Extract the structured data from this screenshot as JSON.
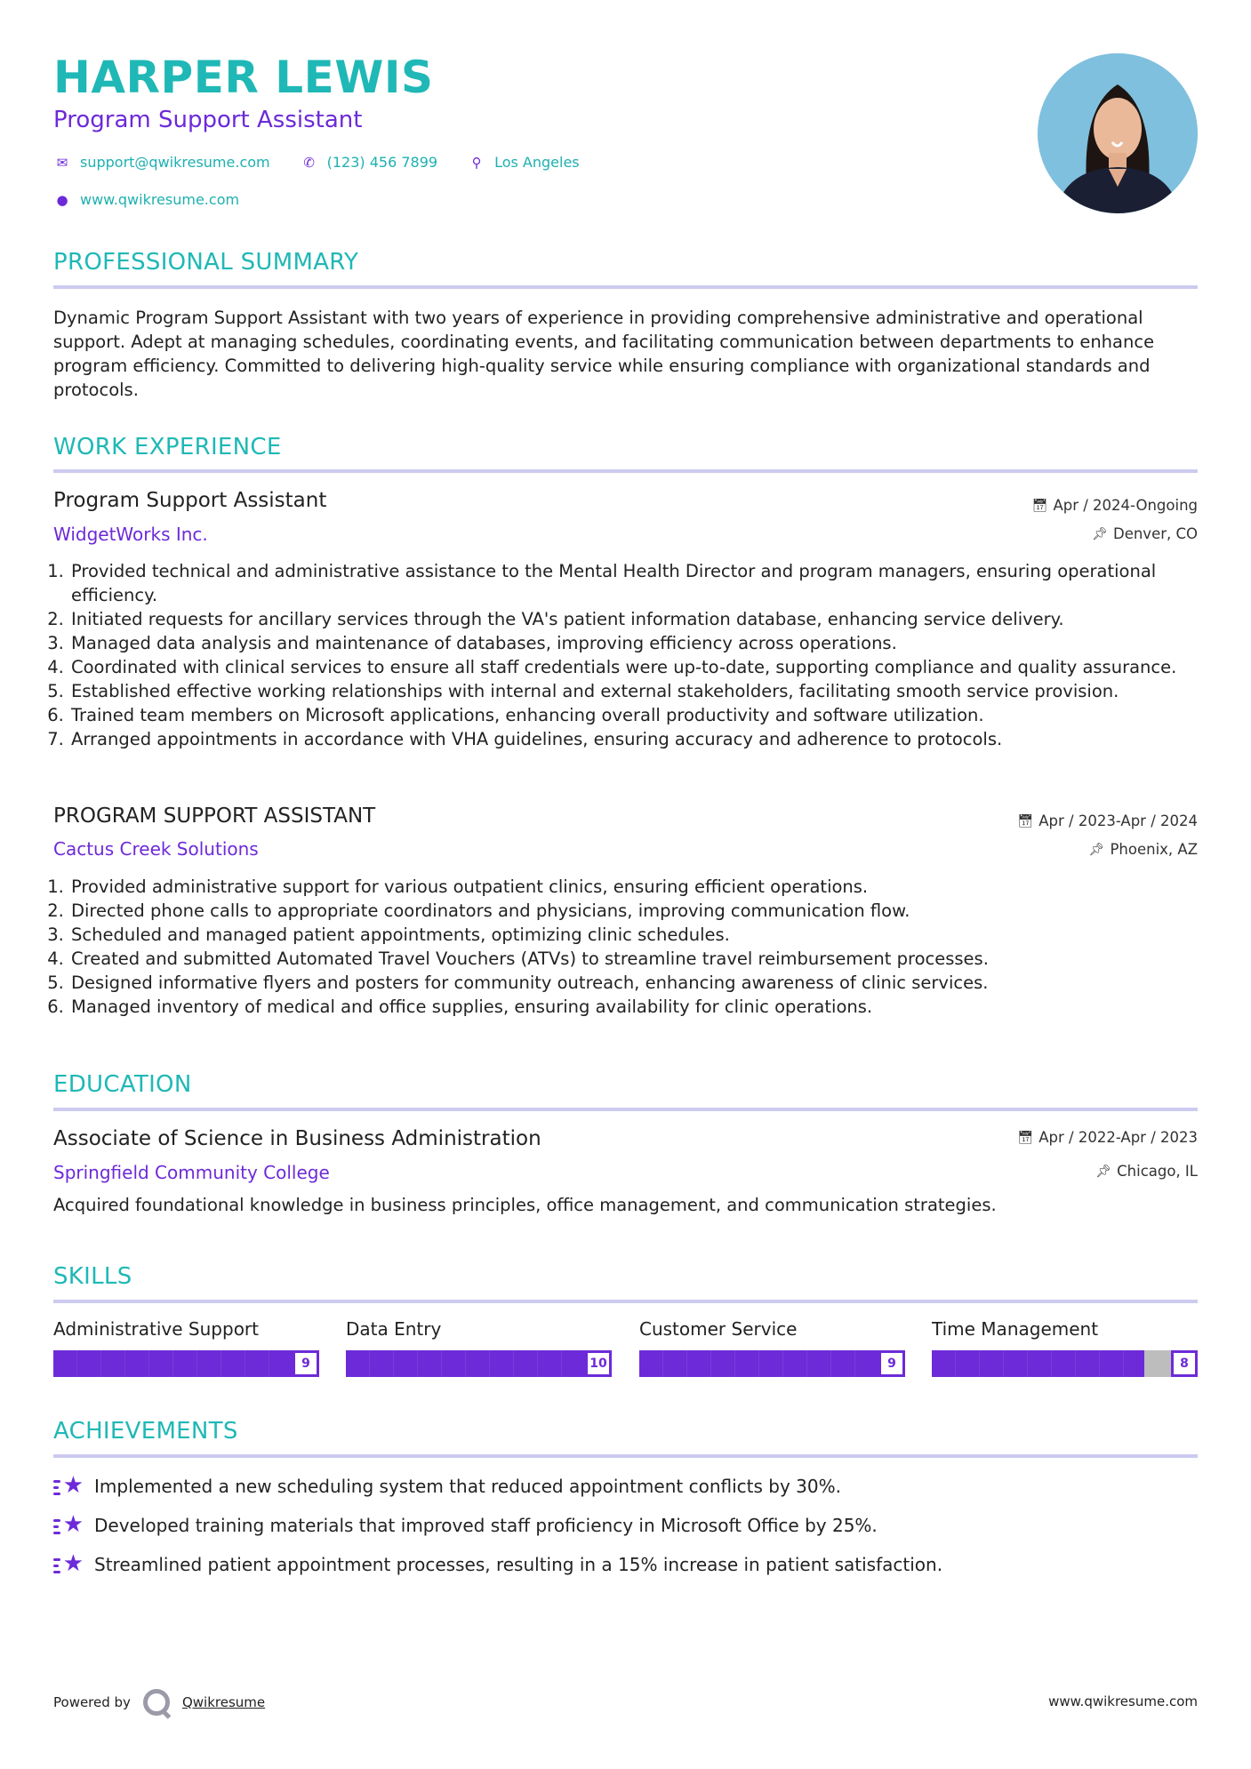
{
  "header": {
    "name": "HARPER LEWIS",
    "title": "Program Support Assistant",
    "email": "support@qwikresume.com",
    "phone": "(123) 456 7899",
    "location": "Los Angeles",
    "website": "www.qwikresume.com"
  },
  "summary": {
    "heading": "PROFESSIONAL SUMMARY",
    "text": "Dynamic Program Support Assistant with two years of experience in providing comprehensive administrative and operational support. Adept at managing schedules, coordinating events, and facilitating communication between departments to enhance program efficiency. Committed to delivering high-quality service while ensuring compliance with organizational standards and protocols."
  },
  "experience": {
    "heading": "WORK EXPERIENCE",
    "jobs": [
      {
        "title": "Program Support Assistant",
        "company": "WidgetWorks Inc.",
        "dates": "Apr / 2024-Ongoing",
        "location": "Denver, CO",
        "bullets": [
          "Provided technical and administrative assistance to the Mental Health Director and program managers, ensuring operational efficiency.",
          "Initiated requests for ancillary services through the VA's patient information database, enhancing service delivery.",
          "Managed data analysis and maintenance of databases, improving efficiency across operations.",
          "Coordinated with clinical services to ensure all staff credentials were up-to-date, supporting compliance and quality assurance.",
          "Established effective working relationships with internal and external stakeholders, facilitating smooth service provision.",
          "Trained team members on Microsoft applications, enhancing overall productivity and software utilization.",
          "Arranged appointments in accordance with VHA guidelines, ensuring accuracy and adherence to protocols."
        ]
      },
      {
        "title": "PROGRAM SUPPORT ASSISTANT",
        "company": "Cactus Creek Solutions",
        "dates": "Apr / 2023-Apr / 2024",
        "location": "Phoenix, AZ",
        "bullets": [
          "Provided administrative support for various outpatient clinics, ensuring efficient operations.",
          "Directed phone calls to appropriate coordinators and physicians, improving communication flow.",
          "Scheduled and managed patient appointments, optimizing clinic schedules.",
          "Created and submitted Automated Travel Vouchers (ATVs) to streamline travel reimbursement processes.",
          "Designed informative flyers and posters for community outreach, enhancing awareness of clinic services.",
          "Managed inventory of medical and office supplies, ensuring availability for clinic operations."
        ]
      }
    ]
  },
  "education": {
    "heading": "EDUCATION",
    "degree": "Associate of Science in Business Administration",
    "school": "Springfield Community College",
    "dates": "Apr / 2022-Apr / 2023",
    "location": "Chicago, IL",
    "description": "Acquired foundational knowledge in business principles, office management, and communication strategies."
  },
  "skills": {
    "heading": "SKILLS",
    "max": 10,
    "items": [
      {
        "label": "Administrative Support",
        "level": 9
      },
      {
        "label": "Data Entry",
        "level": 10
      },
      {
        "label": "Customer Service",
        "level": 9
      },
      {
        "label": "Time Management",
        "level": 8
      }
    ]
  },
  "achievements": {
    "heading": "ACHIEVEMENTS",
    "items": [
      "Implemented a new scheduling system that reduced appointment conflicts by 30%.",
      "Developed training materials that improved staff proficiency in Microsoft Office by 25%.",
      "Streamlined patient appointment processes, resulting in a 15% increase in patient satisfaction."
    ]
  },
  "footer": {
    "powered_by": "Powered by",
    "brand": "Qwikresume",
    "url": "www.qwikresume.com"
  },
  "colors": {
    "accent_teal": "#1fb8b6",
    "accent_purple": "#6d2ad8",
    "rule": "#cdcaf0",
    "bar_empty": "#bdbdbd"
  }
}
